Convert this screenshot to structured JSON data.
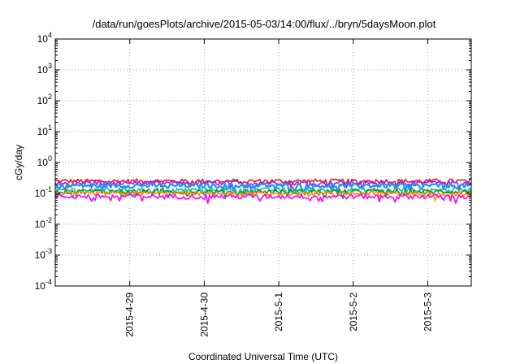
{
  "chart_data": {
    "type": "line",
    "title": "/data/run/goesPlots/archive/2015-05-03/14:00/flux/../bryn/5daysMoon.plot",
    "xlabel": "Coordinated Universal Time (UTC)",
    "ylabel": "cGy/day",
    "x_ticks": [
      "2015-4-29",
      "2015-4-30",
      "2015-5-1",
      "2015-5-2",
      "2015-5-3"
    ],
    "y_scale": "log",
    "ylim": [
      0.0001,
      10000
    ],
    "y_ticks": [
      {
        "base": "10",
        "exp": "-4"
      },
      {
        "base": "10",
        "exp": "-3"
      },
      {
        "base": "10",
        "exp": "-2"
      },
      {
        "base": "10",
        "exp": "-1"
      },
      {
        "base": "10",
        "exp": "0"
      },
      {
        "base": "10",
        "exp": "1"
      },
      {
        "base": "10",
        "exp": "2"
      },
      {
        "base": "10",
        "exp": "3"
      },
      {
        "base": "10",
        "exp": "4"
      }
    ],
    "xlim_days": [
      "2015-04-28 00:00",
      "2015-05-03 14:00"
    ],
    "grid": true,
    "series": [
      {
        "color": "#e41a1c",
        "level": 0.25
      },
      {
        "color": "#a020f0",
        "level": 0.22
      },
      {
        "color": "#1e90ff",
        "level": 0.18
      },
      {
        "color": "#00c8a0",
        "level": 0.13
      },
      {
        "color": "#228b22",
        "level": 0.115
      },
      {
        "color": "#ff8c00",
        "level": 0.1
      },
      {
        "color": "#ff00ff",
        "level": 0.08
      }
    ]
  }
}
